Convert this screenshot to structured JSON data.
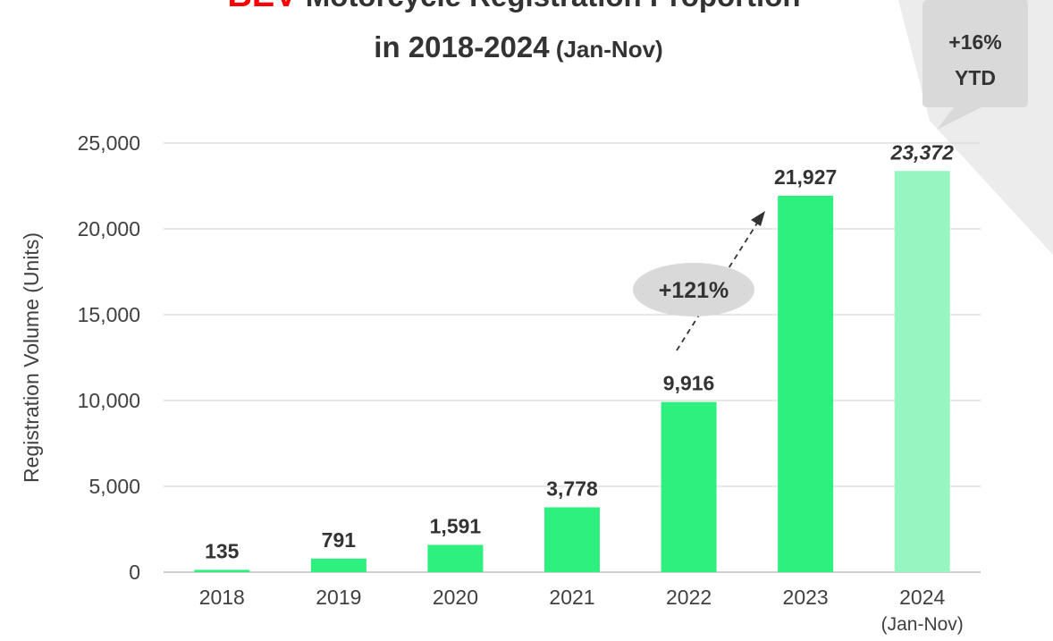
{
  "title": {
    "highlight": "BEV",
    "line1_rest": " Motorcycle Registration Proportion",
    "line2_main": "in 2018-2024",
    "line2_sub": " (Jan-Nov)"
  },
  "callout_ytd": {
    "line1": "+16%",
    "line2": "YTD"
  },
  "growth_annotation": "+121%",
  "colors": {
    "bar": "#2ef07f",
    "bar_estimate": "#96f5c0",
    "highlight": "#ff0000",
    "text": "#333333",
    "callout": "#d9d9d9",
    "grid": "#d9d9d9"
  },
  "chart_data": {
    "type": "bar",
    "categories": [
      "2018",
      "2019",
      "2020",
      "2021",
      "2022",
      "2023",
      "2024"
    ],
    "category_sublabels": [
      "",
      "",
      "",
      "",
      "",
      "",
      "(Jan-Nov)"
    ],
    "values": [
      135,
      791,
      1591,
      3778,
      9916,
      21927,
      23372
    ],
    "value_labels": [
      "135",
      "791",
      "1,591",
      "3,778",
      "9,916",
      "21,927",
      "23,372"
    ],
    "ylabel": "Registration Volume (Units)",
    "ylim": [
      0,
      25000
    ],
    "yticks": [
      0,
      5000,
      10000,
      15000,
      20000,
      25000
    ],
    "ytick_labels": [
      "0",
      "5,000",
      "10,000",
      "15,000",
      "20,000",
      "25,000"
    ],
    "grid": true,
    "legend": "none"
  }
}
